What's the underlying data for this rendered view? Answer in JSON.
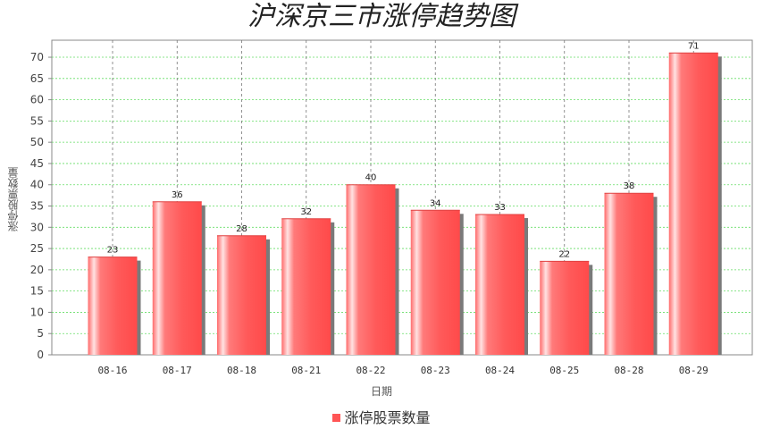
{
  "chart_data": {
    "type": "bar",
    "title": "沪深京三市涨停趋势图",
    "xlabel": "日期",
    "ylabel": "涨停股票数量",
    "categories": [
      "08-16",
      "08-17",
      "08-18",
      "08-21",
      "08-22",
      "08-23",
      "08-24",
      "08-25",
      "08-28",
      "08-29"
    ],
    "series": [
      {
        "name": "涨停股票数量",
        "values": [
          23,
          36,
          28,
          32,
          40,
          34,
          33,
          22,
          38,
          71
        ]
      }
    ],
    "ylim": [
      0,
      74
    ],
    "yticks": [
      0,
      5,
      10,
      15,
      20,
      25,
      30,
      35,
      40,
      45,
      50,
      55,
      60,
      65,
      70
    ],
    "grid": true,
    "legend_position": "bottom",
    "bar_color": "#ff5555"
  }
}
